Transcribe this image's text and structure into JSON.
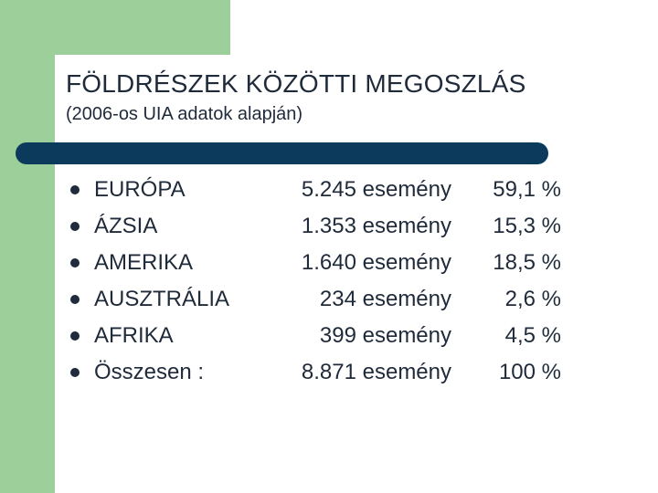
{
  "slide": {
    "title": "FÖLDRÉSZEK KÖZÖTTI MEGOSZLÁS",
    "subtitle": "(2006-os UIA adatok alapján)"
  },
  "rows": [
    {
      "name": "EURÓPA",
      "count": "5.245 esemény",
      "percent": "59,1 %"
    },
    {
      "name": "ÁZSIA",
      "count": "1.353 esemény",
      "percent": "15,3 %"
    },
    {
      "name": "AMERIKA",
      "count": "1.640 esemény",
      "percent": "18,5 %"
    },
    {
      "name": "AUSZTRÁLIA",
      "count": "234 esemény",
      "percent": "2,6 %"
    },
    {
      "name": "AFRIKA",
      "count": "399 esemény",
      "percent": "4,5 %"
    },
    {
      "name": "Összesen :",
      "count": "8.871 esemény",
      "percent": "100 %"
    }
  ],
  "colors": {
    "accent_green": "#9dcf9b",
    "rule_navy": "#0b3a5c",
    "text": "#1f2a3a"
  }
}
